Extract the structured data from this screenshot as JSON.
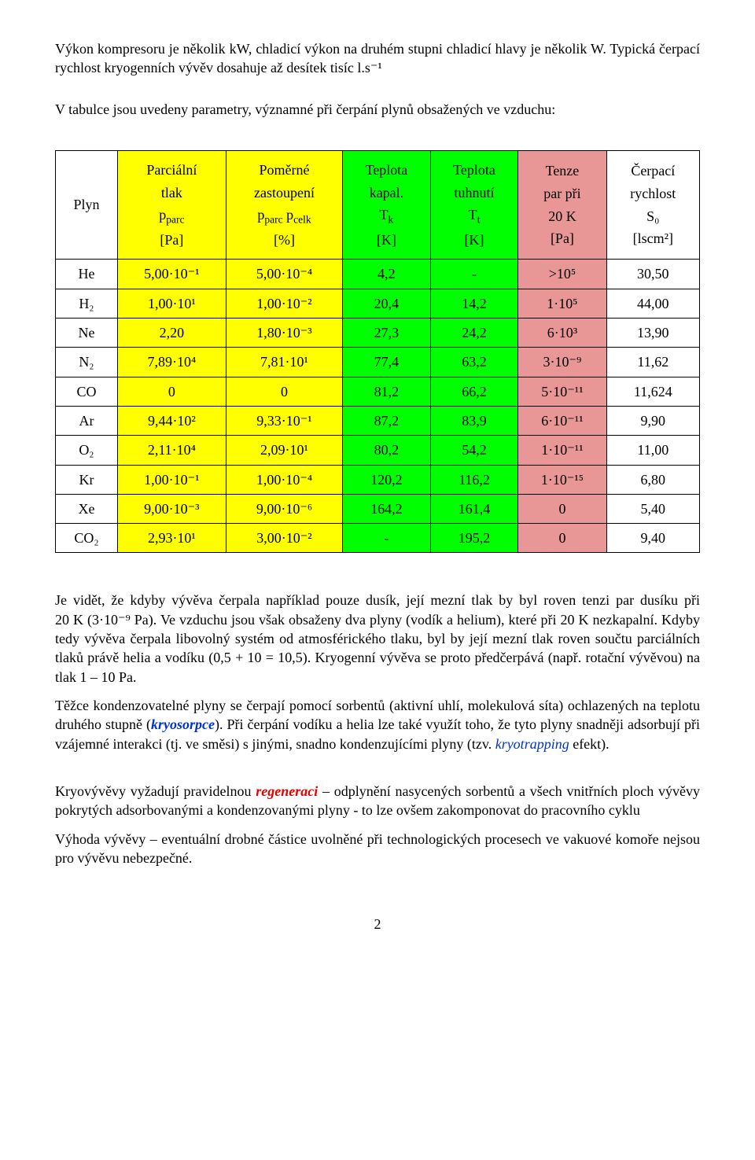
{
  "intro": {
    "p1": "Výkon kompresoru je několik kW, chladicí výkon na druhém stupni chladicí hlavy je několik W. Typická čerpací rychlost kryogenních vývěv dosahuje až desítek tisíc l.s⁻¹",
    "p2": "V tabulce jsou uvedeny parametry, významné při čerpání plynů obsažených ve vzduchu:"
  },
  "table": {
    "columns": [
      {
        "key": "plyn",
        "lines": [
          "Plyn"
        ],
        "bg": ""
      },
      {
        "key": "parc",
        "lines": [
          "Parciální",
          "tlak",
          "p<sub>parc</sub>",
          "[Pa]"
        ],
        "bg": "bg-yellow"
      },
      {
        "key": "pom",
        "lines": [
          "Poměrné",
          "zastoupení",
          "p<sub>parc</sub> p<sub>celk</sub>",
          "[%]"
        ],
        "bg": "bg-yellow"
      },
      {
        "key": "tk",
        "lines": [
          "Teplota",
          "kapal.",
          "T<sub>k</sub>",
          "[K]"
        ],
        "bg": "bg-green"
      },
      {
        "key": "tt",
        "lines": [
          "Teplota",
          "tuhnutí",
          "T<sub>t</sub>",
          "[K]"
        ],
        "bg": "bg-green"
      },
      {
        "key": "tenze",
        "lines": [
          "Tenze",
          "par při",
          "20 K",
          "[Pa]"
        ],
        "bg": "bg-red"
      },
      {
        "key": "s0",
        "lines": [
          "Čerpací",
          "rychlost",
          "S₀",
          "[lscm²]"
        ],
        "bg": ""
      }
    ],
    "rows": [
      {
        "plyn": "He",
        "parc": "5,00·10⁻¹",
        "pom": "5,00·10⁻⁴",
        "tk": "4,2",
        "tt": "-",
        "tenze": ">10⁵",
        "s0": "30,50"
      },
      {
        "plyn": "H₂",
        "parc": "1,00·10¹",
        "pom": "1,00·10⁻²",
        "tk": "20,4",
        "tt": "14,2",
        "tenze": "1·10⁵",
        "s0": "44,00"
      },
      {
        "plyn": "Ne",
        "parc": "2,20",
        "pom": "1,80·10⁻³",
        "tk": "27,3",
        "tt": "24,2",
        "tenze": "6·10³",
        "s0": "13,90"
      },
      {
        "plyn": "N₂",
        "parc": "7,89·10⁴",
        "pom": "7,81·10¹",
        "tk": "77,4",
        "tt": "63,2",
        "tenze": "3·10⁻⁹",
        "s0": "11,62"
      },
      {
        "plyn": "CO",
        "parc": "0",
        "pom": "0",
        "tk": "81,2",
        "tt": "66,2",
        "tenze": "5·10⁻¹¹",
        "s0": "11,624"
      },
      {
        "plyn": "Ar",
        "parc": "9,44·10²",
        "pom": "9,33·10⁻¹",
        "tk": "87,2",
        "tt": "83,9",
        "tenze": "6·10⁻¹¹",
        "s0": "9,90"
      },
      {
        "plyn": "O₂",
        "parc": "2,11·10⁴",
        "pom": "2,09·10¹",
        "tk": "80,2",
        "tt": "54,2",
        "tenze": "1·10⁻¹¹",
        "s0": "11,00"
      },
      {
        "plyn": "Kr",
        "parc": "1,00·10⁻¹",
        "pom": "1,00·10⁻⁴",
        "tk": "120,2",
        "tt": "116,2",
        "tenze": "1·10⁻¹⁵",
        "s0": "6,80"
      },
      {
        "plyn": "Xe",
        "parc": "9,00·10⁻³",
        "pom": "9,00·10⁻⁶",
        "tk": "164,2",
        "tt": "161,4",
        "tenze": "0",
        "s0": "5,40"
      },
      {
        "plyn": "CO₂",
        "parc": "2,93·10¹",
        "pom": "3,00·10⁻²",
        "tk": "-",
        "tt": "195,2",
        "tenze": "0",
        "s0": "9,40"
      }
    ],
    "column_bg": {
      "parc": "bg-yellow",
      "pom": "bg-yellow",
      "tk": "bg-green",
      "tt": "bg-green",
      "tenze": "bg-red"
    }
  },
  "body": {
    "para1a": "Je vidět, že kdyby vývěva čerpala například pouze dusík, její mezní tlak by byl roven tenzi par dusíku při ",
    "para1b": "20 K (3·10⁻⁹ Pa)",
    "para1c": ". Ve vzduchu jsou však obsaženy dva plyny (vodík a helium), které při 20 K nezkapalní. Kdyby tedy vývěva čerpala libovolný systém od atmosférického tlaku, byl by její mezní tlak roven součtu parciálních tlaků právě helia a vodíku (0,5 + 10 = 10,5). Kryogenní vývěva se proto předčerpává (např. rotační vývěvou) na tlak 1 – 10 Pa.",
    "para2a": "Těžce kondenzovatelné plyny se čerpají pomocí sorbentů (aktivní uhlí, molekulová síta) ochlazených na teplotu druhého stupně (",
    "para2_term": "kryosorpce",
    "para2b": "). Při čerpání vodíku a helia lze také využít toho, že tyto plyny snadněji adsorbují při vzájemné interakci (tj. ve směsi) s jinými, snadno kondenzujícími plyny (tzv. ",
    "para2_term2": "kryotrapping",
    "para2c": " efekt).",
    "para3a": "Kryovývěvy vyžadují pravidelnou ",
    "para3_term": "regeneraci",
    "para3b": " – odplynění nasycených sorbentů a všech vnitřních ploch vývěvy pokrytých adsorbovanými a kondenzovanými plyny - to lze ovšem zakomponovat do pracovního cyklu",
    "para4": "Výhoda vývěvy – eventuální drobné částice uvolněné při technologických procesech ve vakuové komoře nejsou pro vývěvu nebezpečné."
  },
  "page_number": "2"
}
